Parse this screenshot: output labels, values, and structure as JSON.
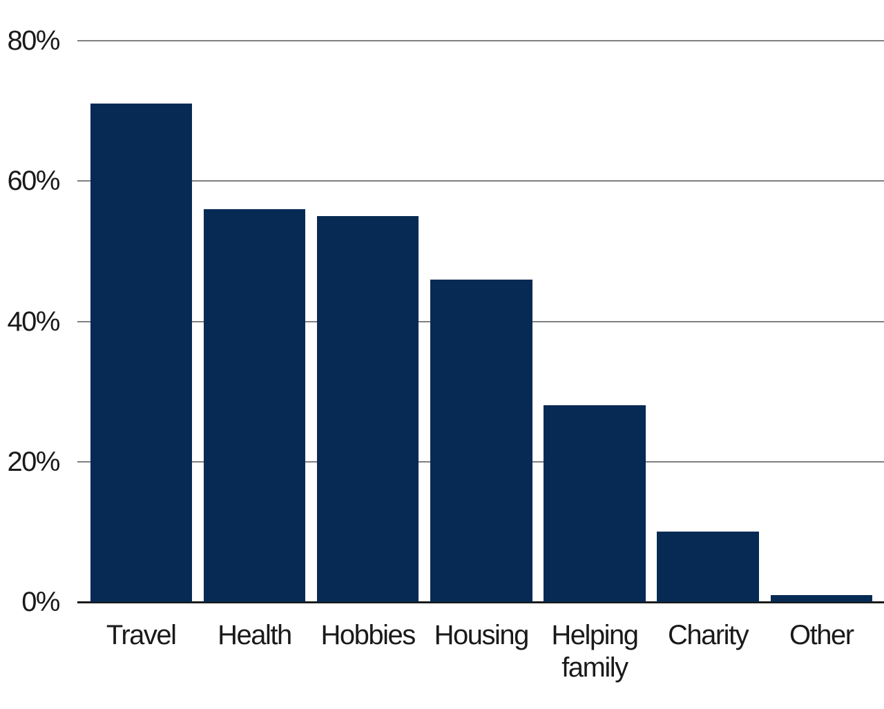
{
  "chart_data": {
    "type": "bar",
    "title": "",
    "xlabel": "",
    "ylabel": "",
    "categories": [
      "Travel",
      "Health",
      "Hobbies",
      "Housing",
      "Helping family",
      "Charity",
      "Other"
    ],
    "values": [
      71,
      56,
      55,
      46,
      28,
      10,
      1
    ],
    "unit": "%",
    "ylim": [
      0,
      80
    ],
    "yticks": [
      0,
      20,
      40,
      60,
      80
    ],
    "ytick_labels": [
      "0%",
      "20%",
      "40%",
      "60%",
      "80%"
    ],
    "grid": "horizontal-only",
    "legend": "none",
    "colors": {
      "bar": "#062A53",
      "gridline": "#7F7F7F",
      "axis": "#1A1A1A",
      "text": "#1A1A1A",
      "background": "#FFFFFF"
    }
  }
}
